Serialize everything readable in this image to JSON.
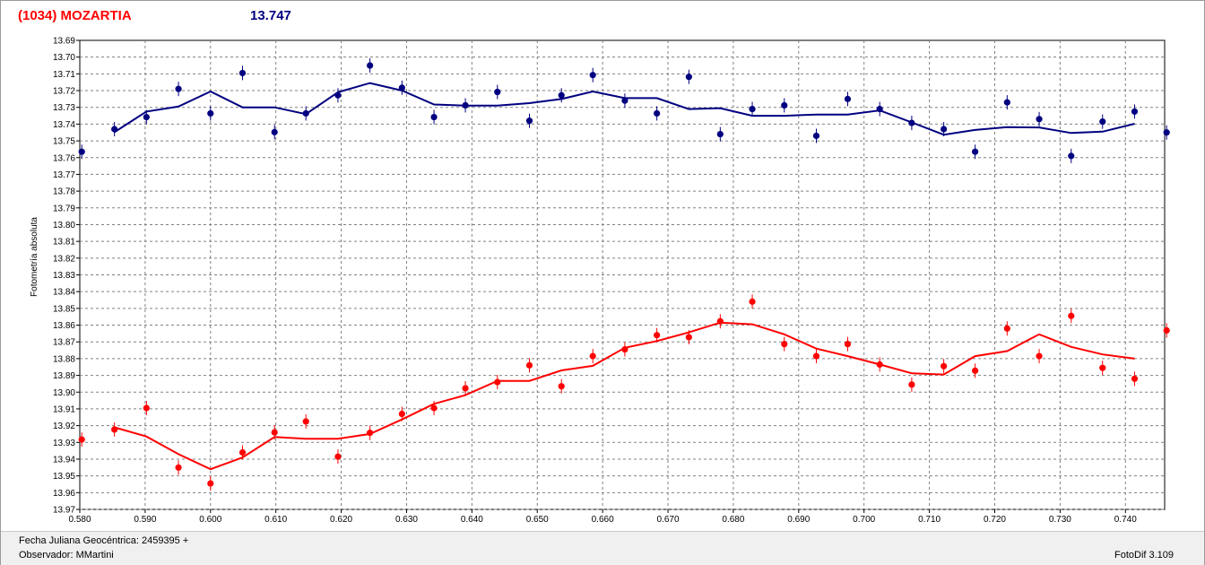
{
  "header": {
    "title": "(1034) MOZARTIA",
    "value": "13.747"
  },
  "footer": {
    "jd": "Fecha Juliana Geocéntrica: 2459395 +",
    "observer": "Observador: MMartini",
    "software": "FotoDif 3.109"
  },
  "colors": {
    "title": "#ff0000",
    "series1": "#000080",
    "series2": "#ff0000",
    "grid": "#808080"
  },
  "chart_data": {
    "type": "scatter",
    "ylabel": "Fotometría absoluta",
    "xlim": [
      0.58,
      0.746
    ],
    "ylim": [
      13.69,
      13.97
    ],
    "y_inverted": true,
    "grid": true,
    "x_ticks": [
      "0.580",
      "0.590",
      "0.600",
      "0.610",
      "0.620",
      "0.630",
      "0.640",
      "0.650",
      "0.660",
      "0.670",
      "0.680",
      "0.690",
      "0.700",
      "0.710",
      "0.720",
      "0.730",
      "0.740"
    ],
    "y_ticks": [
      "13.69",
      "13.70",
      "13.71",
      "13.72",
      "13.73",
      "13.74",
      "13.75",
      "13.76",
      "13.77",
      "13.78",
      "13.79",
      "13.80",
      "13.81",
      "13.82",
      "13.83",
      "13.84",
      "13.85",
      "13.86",
      "13.87",
      "13.88",
      "13.89",
      "13.90",
      "13.91",
      "13.92",
      "13.93",
      "13.94",
      "13.95",
      "13.96",
      "13.97"
    ],
    "series": [
      {
        "color": "#000080",
        "points": [
          [
            0.5803,
            13.7565
          ],
          [
            0.5853,
            13.743
          ],
          [
            0.5902,
            13.7358
          ],
          [
            0.5951,
            13.719
          ],
          [
            0.6,
            13.7336
          ],
          [
            0.6049,
            13.7095
          ],
          [
            0.6098,
            13.7448
          ],
          [
            0.6146,
            13.7336
          ],
          [
            0.6195,
            13.7228
          ],
          [
            0.6244,
            13.705
          ],
          [
            0.6293,
            13.7183
          ],
          [
            0.6342,
            13.7358
          ],
          [
            0.639,
            13.7288
          ],
          [
            0.6439,
            13.7208
          ],
          [
            0.6488,
            13.738
          ],
          [
            0.6537,
            13.7228
          ],
          [
            0.6585,
            13.7107
          ],
          [
            0.6634,
            13.726
          ],
          [
            0.6683,
            13.7336
          ],
          [
            0.6732,
            13.7118
          ],
          [
            0.678,
            13.746
          ],
          [
            0.6829,
            13.731
          ],
          [
            0.6878,
            13.7288
          ],
          [
            0.6927,
            13.747
          ],
          [
            0.6975,
            13.725
          ],
          [
            0.7024,
            13.731
          ],
          [
            0.7073,
            13.7393
          ],
          [
            0.7122,
            13.743
          ],
          [
            0.717,
            13.7565
          ],
          [
            0.7219,
            13.727
          ],
          [
            0.7268,
            13.737
          ],
          [
            0.7317,
            13.759
          ],
          [
            0.7365,
            13.7385
          ],
          [
            0.7414,
            13.7325
          ],
          [
            0.7463,
            13.745
          ]
        ],
        "fit": [
          [
            0.5853,
            13.7448
          ],
          [
            0.5902,
            13.7325
          ],
          [
            0.5951,
            13.7295
          ],
          [
            0.6,
            13.7205
          ],
          [
            0.6049,
            13.73
          ],
          [
            0.6098,
            13.73
          ],
          [
            0.6146,
            13.734
          ],
          [
            0.6195,
            13.721
          ],
          [
            0.6244,
            13.7155
          ],
          [
            0.6293,
            13.72
          ],
          [
            0.6342,
            13.7283
          ],
          [
            0.639,
            13.729
          ],
          [
            0.6439,
            13.729
          ],
          [
            0.6488,
            13.7275
          ],
          [
            0.6537,
            13.725
          ],
          [
            0.6585,
            13.7205
          ],
          [
            0.6634,
            13.7245
          ],
          [
            0.6683,
            13.7245
          ],
          [
            0.6732,
            13.731
          ],
          [
            0.678,
            13.7305
          ],
          [
            0.6829,
            13.735
          ],
          [
            0.6878,
            13.735
          ],
          [
            0.6927,
            13.7343
          ],
          [
            0.6975,
            13.7343
          ],
          [
            0.7024,
            13.7318
          ],
          [
            0.7073,
            13.739
          ],
          [
            0.7122,
            13.7463
          ],
          [
            0.717,
            13.7435
          ],
          [
            0.7219,
            13.7418
          ],
          [
            0.7268,
            13.742
          ],
          [
            0.7317,
            13.7453
          ],
          [
            0.7365,
            13.7445
          ],
          [
            0.7414,
            13.7398
          ]
        ]
      },
      {
        "color": "#ff0000",
        "points": [
          [
            0.5803,
            13.9283
          ],
          [
            0.5853,
            13.9223
          ],
          [
            0.5902,
            13.9095
          ],
          [
            0.5951,
            13.945
          ],
          [
            0.6,
            13.9545
          ],
          [
            0.6049,
            13.936
          ],
          [
            0.6098,
            13.924
          ],
          [
            0.6146,
            13.9175
          ],
          [
            0.6195,
            13.9385
          ],
          [
            0.6244,
            13.9243
          ],
          [
            0.6293,
            13.913
          ],
          [
            0.6342,
            13.9095
          ],
          [
            0.639,
            13.8977
          ],
          [
            0.6439,
            13.894
          ],
          [
            0.6488,
            13.884
          ],
          [
            0.6537,
            13.8965
          ],
          [
            0.6585,
            13.8785
          ],
          [
            0.6634,
            13.8745
          ],
          [
            0.6683,
            13.866
          ],
          [
            0.6732,
            13.8672
          ],
          [
            0.678,
            13.8577
          ],
          [
            0.6829,
            13.846
          ],
          [
            0.6878,
            13.8713
          ],
          [
            0.6927,
            13.8785
          ],
          [
            0.6975,
            13.8713
          ],
          [
            0.7024,
            13.8835
          ],
          [
            0.7073,
            13.8955
          ],
          [
            0.7122,
            13.8845
          ],
          [
            0.717,
            13.8872
          ],
          [
            0.7219,
            13.862
          ],
          [
            0.7268,
            13.8785
          ],
          [
            0.7317,
            13.8545
          ],
          [
            0.7365,
            13.8855
          ],
          [
            0.7414,
            13.892
          ],
          [
            0.7463,
            13.8632
          ]
        ],
        "fit": [
          [
            0.5853,
            13.921
          ],
          [
            0.5902,
            13.9265
          ],
          [
            0.5951,
            13.937
          ],
          [
            0.6,
            13.946
          ],
          [
            0.6049,
            13.939
          ],
          [
            0.6098,
            13.9268
          ],
          [
            0.6146,
            13.9278
          ],
          [
            0.6195,
            13.9278
          ],
          [
            0.6244,
            13.925
          ],
          [
            0.6293,
            13.9163
          ],
          [
            0.6342,
            13.907
          ],
          [
            0.639,
            13.9018
          ],
          [
            0.6439,
            13.8933
          ],
          [
            0.6488,
            13.8933
          ],
          [
            0.6537,
            13.887
          ],
          [
            0.6585,
            13.8843
          ],
          [
            0.6634,
            13.8735
          ],
          [
            0.6683,
            13.8695
          ],
          [
            0.6732,
            13.8643
          ],
          [
            0.678,
            13.8585
          ],
          [
            0.6829,
            13.8595
          ],
          [
            0.6878,
            13.8655
          ],
          [
            0.6927,
            13.874
          ],
          [
            0.6975,
            13.8785
          ],
          [
            0.7024,
            13.8835
          ],
          [
            0.7073,
            13.8888
          ],
          [
            0.7122,
            13.8895
          ],
          [
            0.717,
            13.8785
          ],
          [
            0.7219,
            13.8755
          ],
          [
            0.7268,
            13.8655
          ],
          [
            0.7317,
            13.873
          ],
          [
            0.7365,
            13.8775
          ],
          [
            0.7414,
            13.88
          ]
        ]
      }
    ]
  }
}
